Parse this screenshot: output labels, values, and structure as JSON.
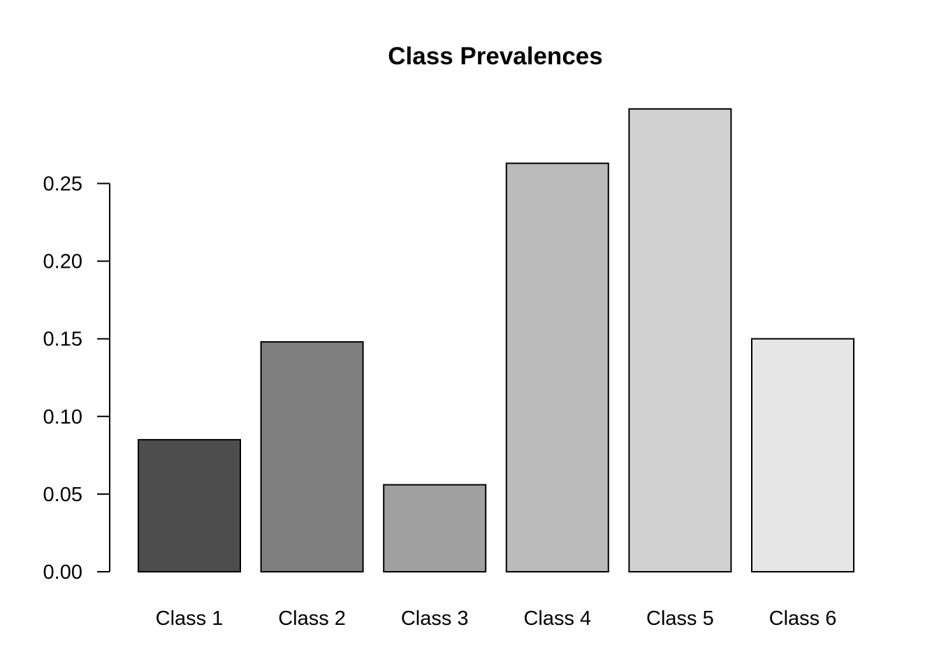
{
  "chart_data": {
    "type": "bar",
    "title": "Class Prevalences",
    "xlabel": "",
    "ylabel": "",
    "categories": [
      "Class 1",
      "Class 2",
      "Class 3",
      "Class 4",
      "Class 5",
      "Class 6"
    ],
    "values": [
      0.085,
      0.148,
      0.056,
      0.263,
      0.298,
      0.15
    ],
    "colors": [
      "#4d4d4d",
      "#7f7f7f",
      "#a0a0a0",
      "#bababa",
      "#d1d1d1",
      "#e6e6e6"
    ],
    "y_ticks": [
      0.0,
      0.05,
      0.1,
      0.15,
      0.2,
      0.25
    ],
    "y_tick_labels": [
      "0.00",
      "0.05",
      "0.10",
      "0.15",
      "0.20",
      "0.25"
    ],
    "ylim": [
      0,
      0.3
    ],
    "grid": false,
    "legend": "none"
  }
}
